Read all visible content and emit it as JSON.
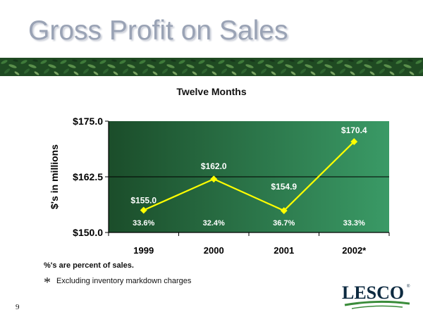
{
  "slide": {
    "title": "Gross Profit on Sales",
    "page_number": "9",
    "note_percent": "%'s are percent of sales.",
    "note_footnote_marker": "*",
    "note_footnote": "Excluding inventory markdown charges",
    "logo_text": "LESCO",
    "logo_mark": "®"
  },
  "chart_data": {
    "type": "line",
    "title": "Twelve Months",
    "ylabel": "$'s in millions",
    "categories": [
      "1999",
      "2000",
      "2001",
      "2002*"
    ],
    "values": [
      155.0,
      162.0,
      154.9,
      170.4
    ],
    "value_labels": [
      "$155.0",
      "$162.0",
      "$154.9",
      "$170.4"
    ],
    "percent_labels": [
      "33.6%",
      "32.4%",
      "36.7%",
      "33.3%"
    ],
    "yticks": [
      "$175.0",
      "$162.5",
      "$150.0"
    ],
    "ytick_values": [
      175.0,
      162.5,
      150.0
    ],
    "ylim": [
      150.0,
      175.0
    ],
    "grid": true,
    "colors": {
      "line": "#ffff00",
      "plot_bg_dark": "#1b4d2a",
      "plot_bg_light": "#3a9a66",
      "title": "#9aa3b5"
    }
  }
}
